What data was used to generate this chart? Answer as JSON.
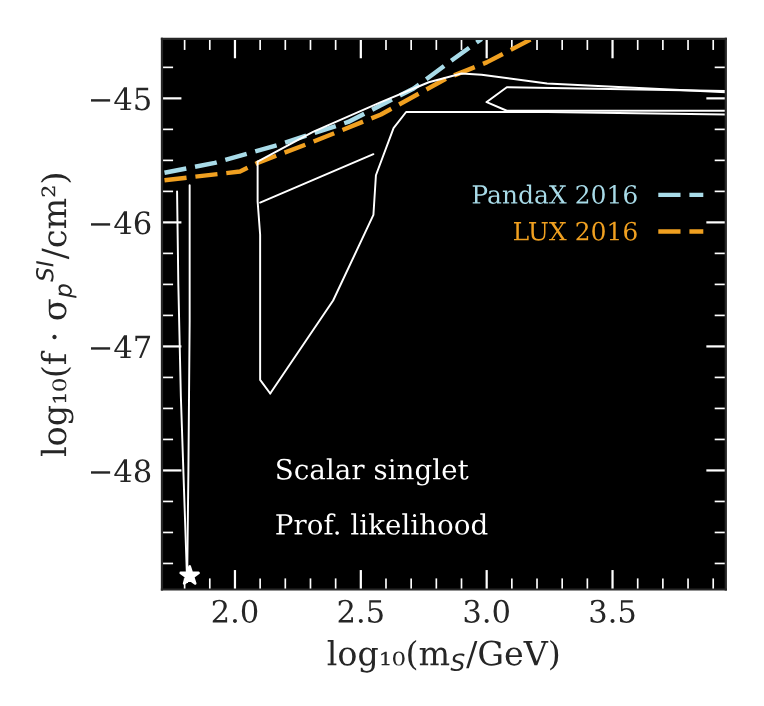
{
  "chart_data": {
    "type": "line",
    "xlabel": "log₁₀(m$_{S}$/GeV)",
    "ylabel": "log₁₀(f · σ$_{p}$$^{SI}$/cm²)",
    "xlim": [
      1.71,
      3.95
    ],
    "ylim": [
      -48.96,
      -44.52
    ],
    "xticks": [
      {
        "value": 2,
        "label": "2.0"
      },
      {
        "value": 2.5,
        "label": "2.5"
      },
      {
        "value": 3,
        "label": "3.0"
      },
      {
        "value": 3.5,
        "label": "3.5"
      }
    ],
    "yticks": [
      {
        "value": -45,
        "label": "−45"
      },
      {
        "value": -46,
        "label": "−46"
      },
      {
        "value": -47,
        "label": "−47"
      },
      {
        "value": -48,
        "label": "−48"
      }
    ],
    "annotations": [
      "Scalar singlet",
      "Prof. likelihood"
    ],
    "legend": "right",
    "grid": false,
    "series": [
      {
        "name": "PandaX 2016",
        "color": "#a8dbe8",
        "line_style": "dashed",
        "x": [
          1.72,
          1.92,
          2.18,
          2.45,
          2.71,
          2.87,
          2.98
        ],
        "values": [
          -45.6,
          -45.52,
          -45.37,
          -45.19,
          -44.92,
          -44.68,
          -44.52
        ]
      },
      {
        "name": "LUX 2016",
        "color": "#f0a020",
        "line_style": "dashed",
        "x": [
          1.72,
          2.02,
          2.09,
          2.31,
          2.58,
          2.84,
          3.0,
          3.18
        ],
        "values": [
          -45.66,
          -45.59,
          -45.52,
          -45.35,
          -45.13,
          -44.84,
          -44.71,
          -44.52
        ]
      },
      {
        "color": "#ffffff",
        "line_style": "solid",
        "x": [
          2.09,
          2.31,
          2.58,
          2.77,
          2.9,
          2.98,
          3.24,
          3.95
        ],
        "values": [
          -45.51,
          -45.27,
          -45.03,
          -44.87,
          -44.8,
          -44.81,
          -44.88,
          -44.95
        ]
      },
      {
        "color": "#ffffff",
        "line_style": "solid",
        "x": [
          3.95,
          3.24,
          2.68,
          2.63,
          2.56,
          2.55,
          2.39,
          2.23,
          2.14
        ],
        "values": [
          -45.13,
          -45.11,
          -45.11,
          -45.24,
          -45.62,
          -45.94,
          -46.63,
          -47.11,
          -47.38
        ]
      },
      {
        "color": "#ffffff",
        "line_style": "solid",
        "x": [
          2.14,
          2.1,
          2.1,
          2.09,
          2.09
        ],
        "values": [
          -47.38,
          -47.27,
          -46.1,
          -45.83,
          -45.51
        ]
      },
      {
        "color": "#ffffff",
        "line_style": "solid",
        "x": [
          2.1,
          2.55
        ],
        "values": [
          -45.84,
          -45.45
        ]
      },
      {
        "color": "#ffffff",
        "line_style": "solid",
        "x": [
          3.0,
          3.08,
          3.95
        ],
        "values": [
          -45.03,
          -44.91,
          -44.94
        ]
      },
      {
        "color": "#ffffff",
        "line_style": "solid",
        "x": [
          3.0,
          3.08,
          3.95
        ],
        "values": [
          -45.03,
          -45.1,
          -45.1
        ]
      },
      {
        "color": "#ffffff",
        "line_style": "solid",
        "x": [
          1.77,
          1.775,
          1.785,
          1.8,
          1.81
        ],
        "values": [
          -45.75,
          -46.5,
          -47.4,
          -48.3,
          -48.9
        ]
      },
      {
        "color": "#ffffff",
        "line_style": "solid",
        "x": [
          1.81,
          1.815,
          1.82,
          1.82
        ],
        "values": [
          -48.9,
          -48.0,
          -46.8,
          -45.7
        ]
      },
      {
        "type": "scatter",
        "color": "#ffffff",
        "marker": "star",
        "x": [
          1.82
        ],
        "values": [
          -48.85
        ]
      }
    ]
  }
}
